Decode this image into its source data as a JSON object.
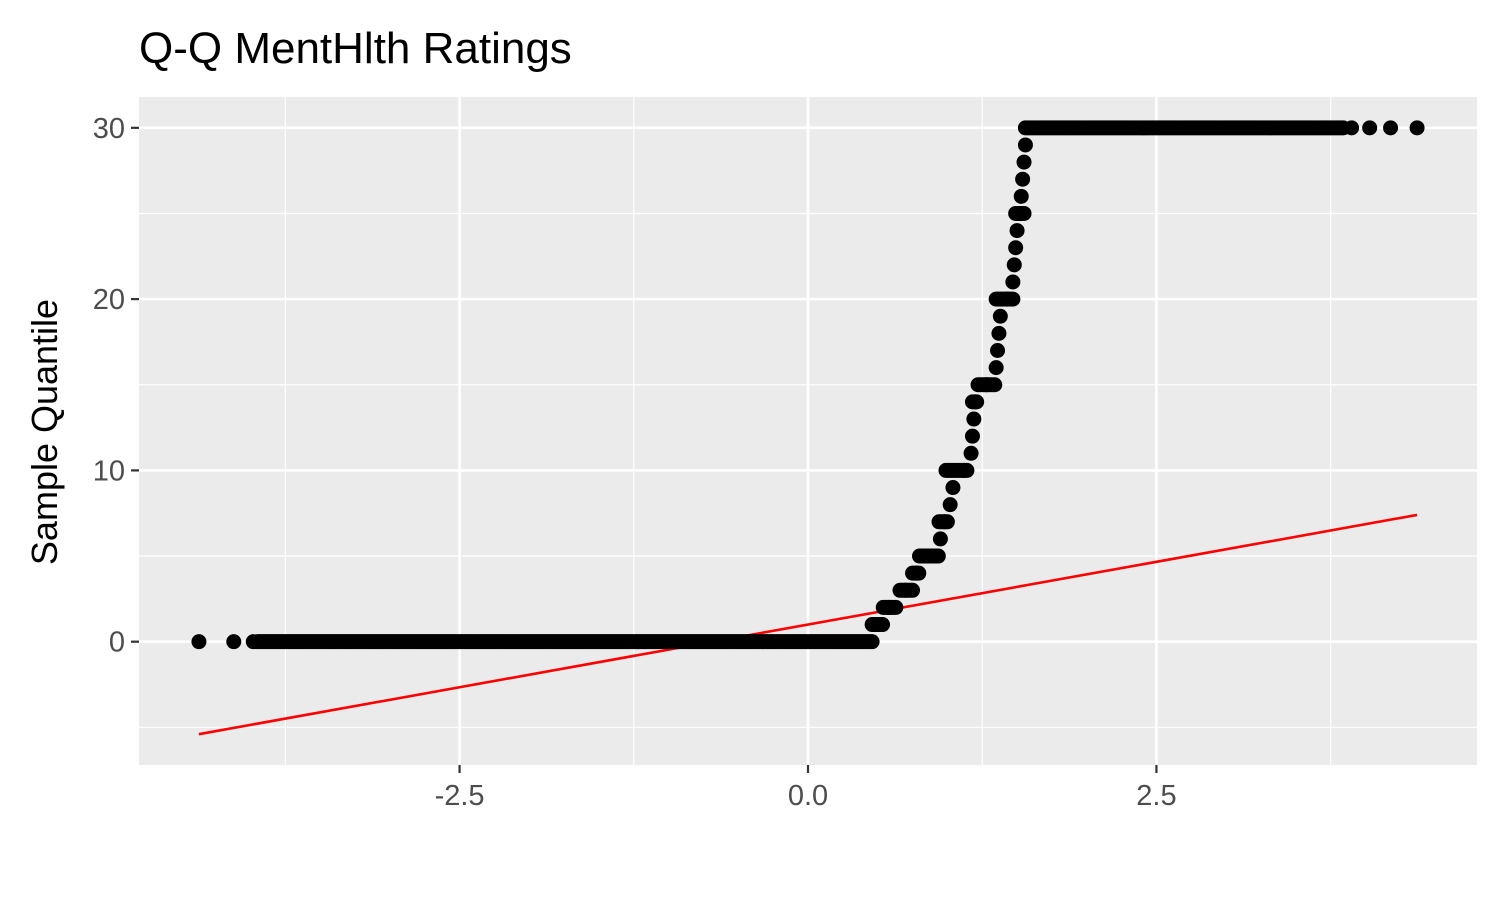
{
  "chart_data": {
    "type": "scatter",
    "title": "Q-Q MentHlth Ratings",
    "xlabel": "",
    "ylabel": "Sample Quantile",
    "xlim": [
      -4.8,
      4.8
    ],
    "ylim": [
      -7.2,
      31.8
    ],
    "x_ticks": [
      -2.5,
      0.0,
      2.5
    ],
    "x_tick_labels": [
      "-2.5",
      "0.0",
      "2.5"
    ],
    "x_minor_ticks": [
      -3.75,
      -1.25,
      1.25,
      3.75
    ],
    "y_ticks": [
      0,
      10,
      20,
      30
    ],
    "y_tick_labels": [
      "0",
      "10",
      "20",
      "30"
    ],
    "y_minor_ticks": [
      -5,
      5,
      15,
      25
    ],
    "grid": true,
    "panel_color": "#ebebeb",
    "grid_color": "#ffffff",
    "point_color": "#000000",
    "line_color": "#ff0000",
    "points": [
      {
        "x": -4.37,
        "y": 0
      },
      {
        "x": -4.12,
        "y": 0
      },
      {
        "x": -3.98,
        "y": 0
      },
      {
        "x": 0.52,
        "y": 1
      },
      {
        "x": 0.58,
        "y": 2
      },
      {
        "x": 0.7,
        "y": 3
      },
      {
        "x": 0.78,
        "y": 4
      },
      {
        "x": 0.86,
        "y": 5
      },
      {
        "x": 0.95,
        "y": 6
      },
      {
        "x": 0.98,
        "y": 7
      },
      {
        "x": 1.02,
        "y": 8
      },
      {
        "x": 1.04,
        "y": 9
      },
      {
        "x": 1.12,
        "y": 10
      },
      {
        "x": 1.17,
        "y": 11
      },
      {
        "x": 1.18,
        "y": 12
      },
      {
        "x": 1.19,
        "y": 13
      },
      {
        "x": 1.2,
        "y": 14
      },
      {
        "x": 1.28,
        "y": 15
      },
      {
        "x": 1.35,
        "y": 16
      },
      {
        "x": 1.36,
        "y": 17
      },
      {
        "x": 1.37,
        "y": 18
      },
      {
        "x": 1.38,
        "y": 19
      },
      {
        "x": 1.43,
        "y": 20
      },
      {
        "x": 1.47,
        "y": 21
      },
      {
        "x": 1.48,
        "y": 22
      },
      {
        "x": 1.49,
        "y": 23
      },
      {
        "x": 1.5,
        "y": 24
      },
      {
        "x": 1.52,
        "y": 25
      },
      {
        "x": 1.53,
        "y": 26
      },
      {
        "x": 1.54,
        "y": 27
      },
      {
        "x": 1.55,
        "y": 28
      },
      {
        "x": 1.56,
        "y": 29
      },
      {
        "x": 3.9,
        "y": 30
      },
      {
        "x": 4.03,
        "y": 30
      },
      {
        "x": 4.18,
        "y": 30
      },
      {
        "x": 4.37,
        "y": 30
      }
    ],
    "point_runs": [
      {
        "y": 0,
        "x_start": -3.95,
        "x_end": 0.47
      },
      {
        "y": 1,
        "x_start": 0.46,
        "x_end": 0.54
      },
      {
        "y": 2,
        "x_start": 0.54,
        "x_end": 0.64
      },
      {
        "y": 3,
        "x_start": 0.66,
        "x_end": 0.75
      },
      {
        "y": 4,
        "x_start": 0.75,
        "x_end": 0.8
      },
      {
        "y": 5,
        "x_start": 0.8,
        "x_end": 0.94
      },
      {
        "y": 7,
        "x_start": 0.94,
        "x_end": 1.0
      },
      {
        "y": 10,
        "x_start": 0.99,
        "x_end": 1.15
      },
      {
        "y": 14,
        "x_start": 1.18,
        "x_end": 1.22
      },
      {
        "y": 15,
        "x_start": 1.22,
        "x_end": 1.35
      },
      {
        "y": 20,
        "x_start": 1.35,
        "x_end": 1.48
      },
      {
        "y": 25,
        "x_start": 1.49,
        "x_end": 1.55
      },
      {
        "y": 30,
        "x_start": 1.56,
        "x_end": 3.85
      }
    ],
    "reference_line": {
      "x": [
        -4.37,
        4.37
      ],
      "y": [
        -5.4,
        7.4
      ]
    }
  }
}
